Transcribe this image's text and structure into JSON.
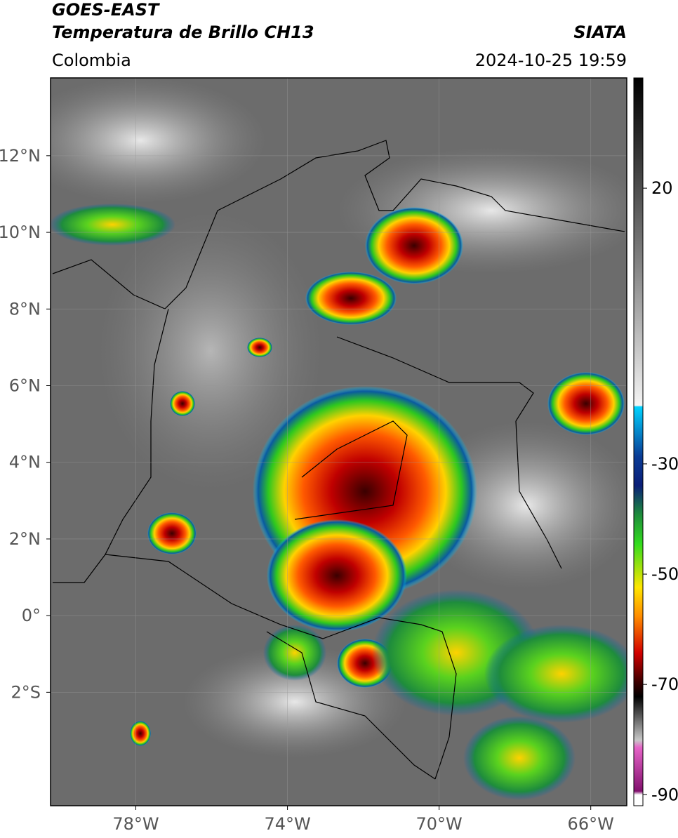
{
  "header": {
    "title": "GOES-EAST",
    "subtitle": "Temperatura de Brillo CH13",
    "region": "Colombia",
    "source": "SIATA",
    "datetime": "2024-10-25 19:59"
  },
  "map": {
    "xlim": [
      -80.25,
      -65.05
    ],
    "ylim": [
      -4.96,
      14.03
    ],
    "xticks": [
      {
        "value": -78,
        "label": "78°W"
      },
      {
        "value": -74,
        "label": "74°W"
      },
      {
        "value": -70,
        "label": "70°W"
      },
      {
        "value": -66,
        "label": "66°W"
      }
    ],
    "yticks": [
      {
        "value": 12,
        "label": "12°N"
      },
      {
        "value": 10,
        "label": "10°N"
      },
      {
        "value": 8,
        "label": "8°N"
      },
      {
        "value": 6,
        "label": "6°N"
      },
      {
        "value": 4,
        "label": "4°N"
      },
      {
        "value": 2,
        "label": "2°N"
      },
      {
        "value": 0,
        "label": "0°"
      },
      {
        "value": -2,
        "label": "2°S"
      }
    ],
    "grid": true
  },
  "colorbar": {
    "ylim": [
      -92,
      40
    ],
    "yticks": [
      20,
      -30,
      -50,
      -70,
      -90
    ]
  }
}
